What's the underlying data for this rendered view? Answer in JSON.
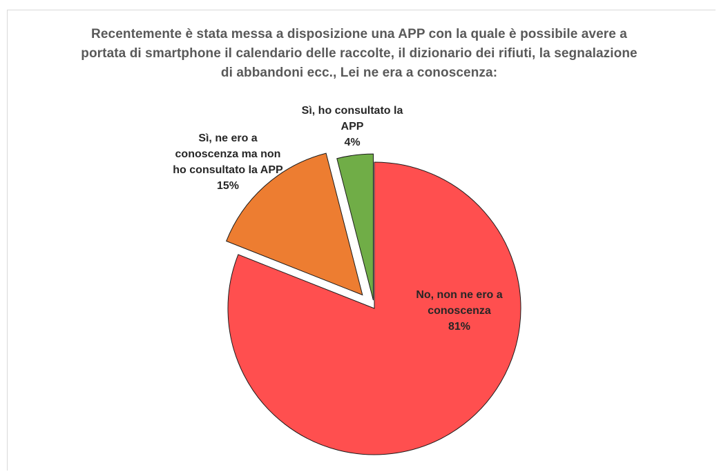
{
  "chart_data": {
    "type": "pie",
    "title": "Recentemente è stata messa a disposizione una APP con la quale è possibile avere a portata di smartphone il calendario delle raccolte, il dizionario dei rifiuti, la segnalazione di abbandoni ecc., Lei ne era a conoscenza:",
    "slices": [
      {
        "label_lines": [
          "No, non ne ero a",
          "conoscenza"
        ],
        "value": 81,
        "percent_label": "81%",
        "color": "#FF4F4F",
        "exploded": false
      },
      {
        "label_lines": [
          "Sì, ne ero a",
          "conoscenza ma non",
          "ho consultato la APP"
        ],
        "value": 15,
        "percent_label": "15%",
        "color": "#ED7D31",
        "exploded": true
      },
      {
        "label_lines": [
          "Sì, ho consultato la",
          "APP"
        ],
        "value": 4,
        "percent_label": "4%",
        "color": "#70AD47",
        "exploded": true
      }
    ],
    "legend": "none",
    "start_angle": "12 o'clock, clockwise"
  }
}
